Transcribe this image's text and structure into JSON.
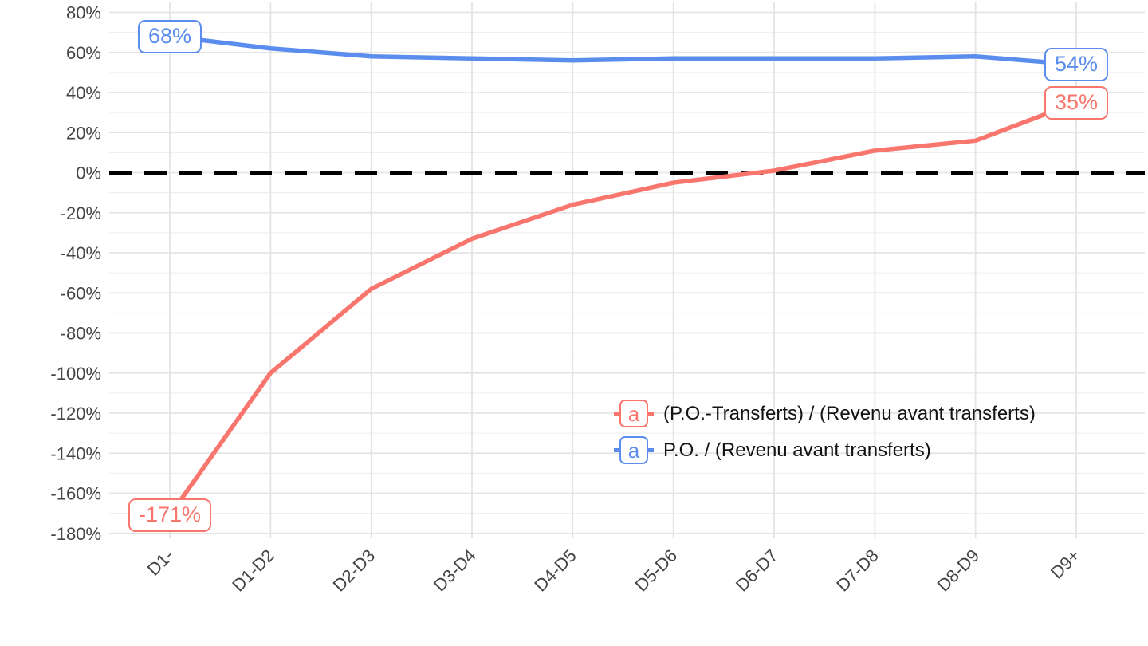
{
  "chart_data": {
    "type": "line",
    "categories": [
      "D1-",
      "D1-D2",
      "D2-D3",
      "D3-D4",
      "D4-D5",
      "D5-D6",
      "D6-D7",
      "D7-D8",
      "D8-D9",
      "D9+"
    ],
    "series": [
      {
        "name": "(P.O.-Transferts) / (Revenu avant transferts)",
        "color": "#F8766D",
        "values": [
          -171,
          -100,
          -58,
          -33,
          -16,
          -5,
          1,
          11,
          16,
          35
        ],
        "endpoint_labels": {
          "first": "-171%",
          "last": "35%"
        }
      },
      {
        "name": "P.O. / (Revenu avant transferts)",
        "color": "#5B8DEE",
        "values": [
          68,
          62,
          58,
          57,
          56,
          57,
          57,
          57,
          58,
          54
        ],
        "endpoint_labels": {
          "first": "68%",
          "last": "54%"
        }
      }
    ],
    "y_axis": {
      "tick_labels": [
        "80%",
        "60%",
        "40%",
        "20%",
        "0%",
        "-20%",
        "-40%",
        "-60%",
        "-80%",
        "-100%",
        "-120%",
        "-140%",
        "-160%",
        "-180%"
      ],
      "tick_values": [
        80,
        60,
        40,
        20,
        0,
        -20,
        -40,
        -60,
        -80,
        -100,
        -120,
        -140,
        -160,
        -180
      ],
      "ylim": [
        -183,
        84
      ]
    },
    "x_axis": {
      "tick_labels": [
        "D1-",
        "D1-D2",
        "D2-D3",
        "D3-D4",
        "D4-D5",
        "D5-D6",
        "D6-D7",
        "D7-D8",
        "D8-D9",
        "D9+"
      ],
      "label_angle_deg": 45
    },
    "zero_line": {
      "value": 0,
      "style": "dashed",
      "color": "#000000"
    },
    "grid": {
      "horizontal": "major+minor",
      "vertical": "major-only",
      "major_color": "#E4E4E4",
      "minor_color": "#F0F0F0"
    },
    "legend": {
      "key_letter": "a",
      "position": "inside-bottom-right"
    },
    "title": ""
  }
}
